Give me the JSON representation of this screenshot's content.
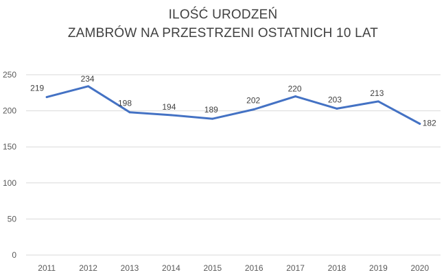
{
  "chart_data": {
    "type": "line",
    "title_line1": "ILOŚĆ URODZEŃ",
    "title_line2": "ZAMBRÓW NA PRZESTRZENI OSTATNICH 10 LAT",
    "categories": [
      "2011",
      "2012",
      "2013",
      "2014",
      "2015",
      "2016",
      "2017",
      "2018",
      "2019",
      "2020"
    ],
    "series": [
      {
        "values": [
          219,
          234,
          198,
          194,
          189,
          202,
          220,
          203,
          213,
          182
        ]
      }
    ],
    "data_labels": [
      "219",
      "234",
      "198",
      "194",
      "189",
      "202",
      "220",
      "203",
      "213",
      "182"
    ],
    "y_ticks": [
      "0",
      "50",
      "100",
      "150",
      "200",
      "250"
    ],
    "ylim": [
      0,
      250
    ],
    "grid": true,
    "legend": "none",
    "xlabel": "",
    "ylabel": "",
    "colors": {
      "line": "#4472C4",
      "grid": "#d9d9d9",
      "text": "#404040",
      "axis_text": "#595959"
    }
  }
}
